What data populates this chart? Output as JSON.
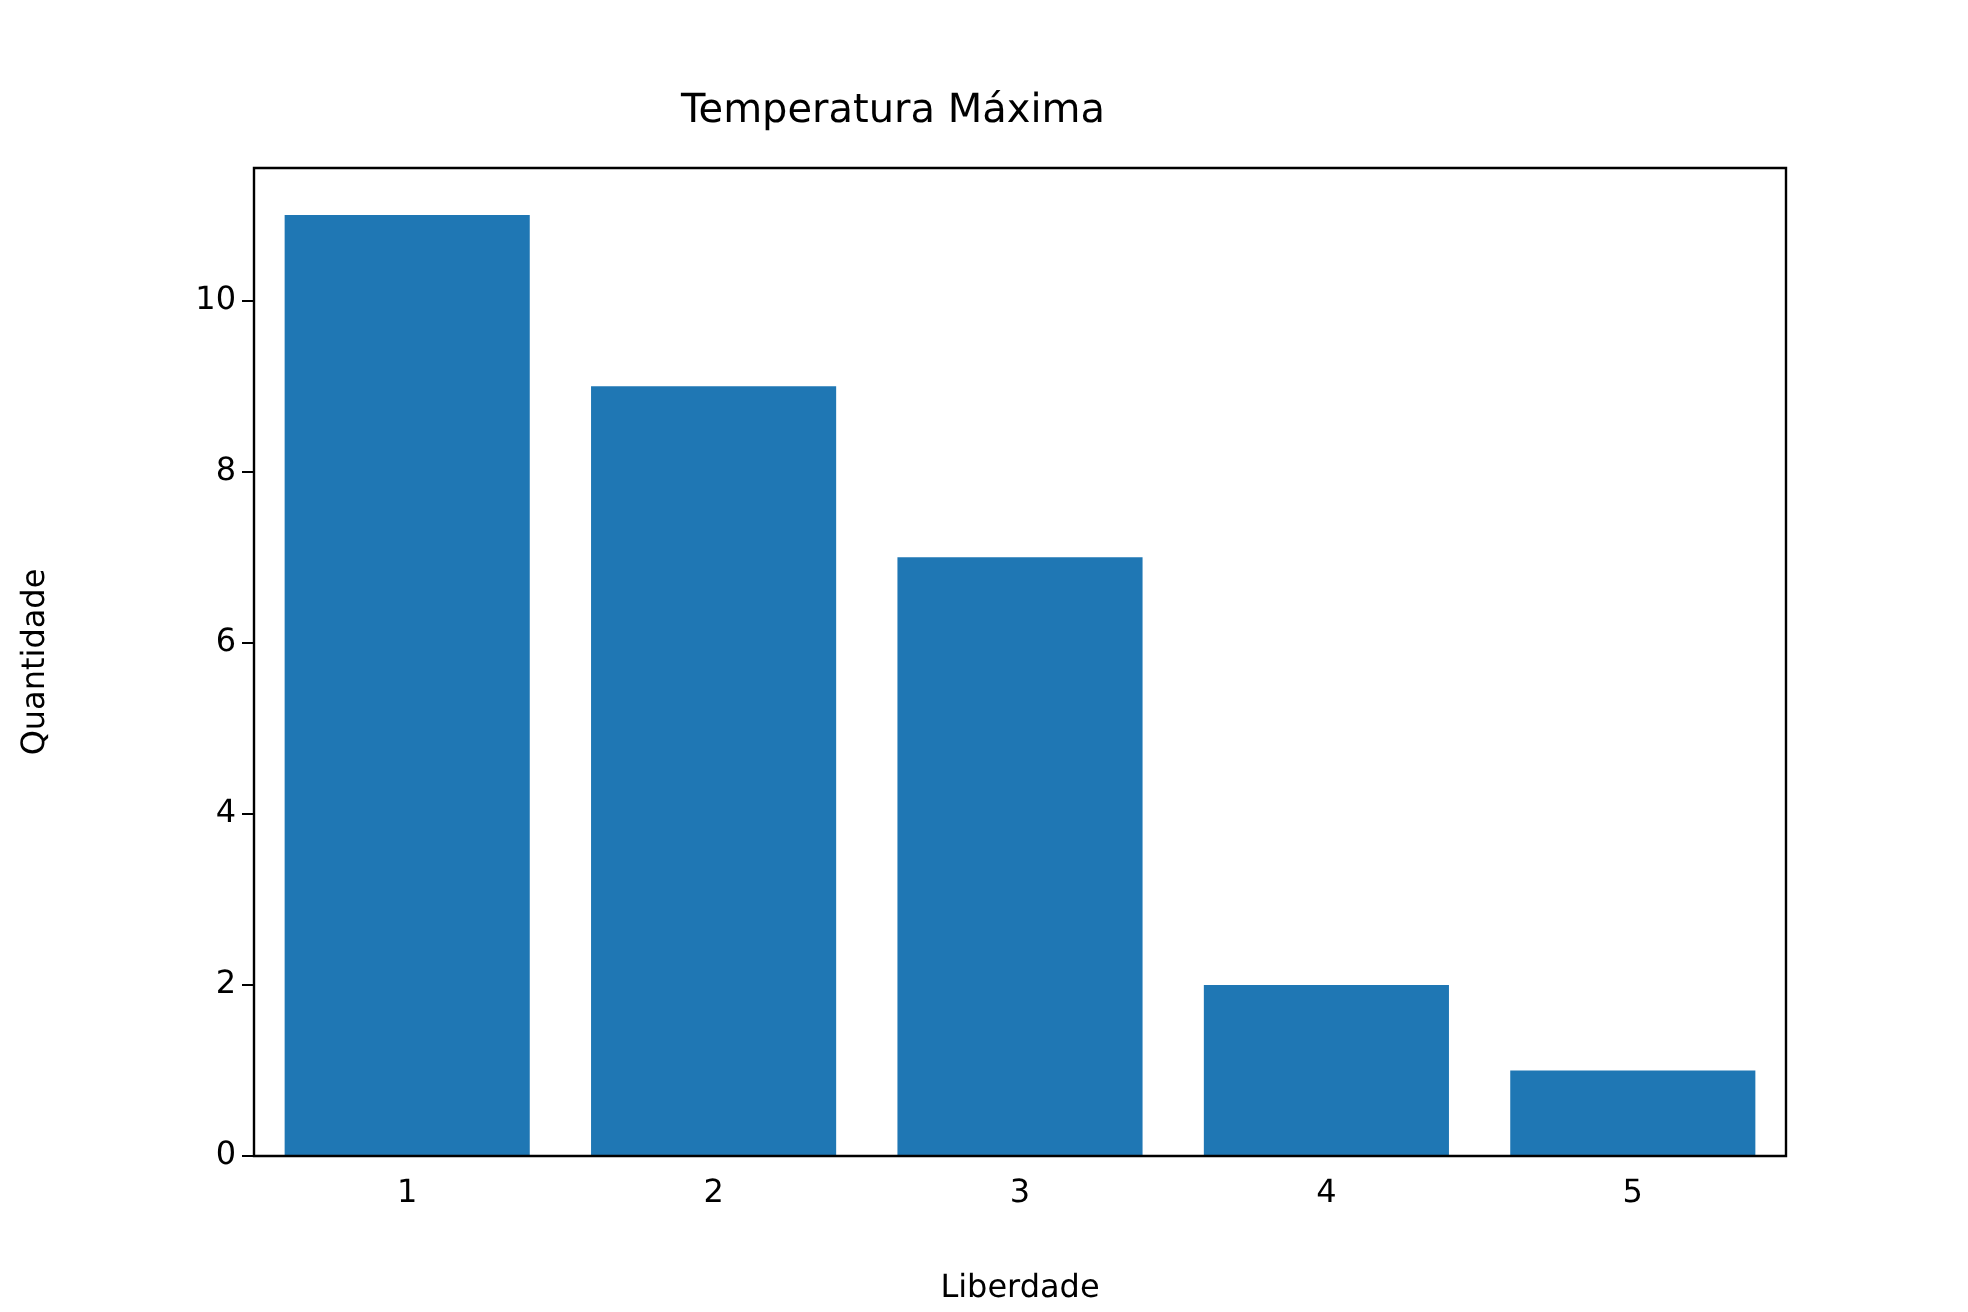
{
  "chart_data": {
    "type": "bar",
    "title": "Temperatura Máxima",
    "xlabel": "Liberdade",
    "ylabel": "Quantidade",
    "categories": [
      "1",
      "2",
      "3",
      "4",
      "5"
    ],
    "values": [
      11,
      9,
      7,
      2,
      1
    ],
    "color": "#1f77b4",
    "ylim": [
      0,
      11.55
    ],
    "yticks": [
      0,
      2,
      4,
      6,
      8,
      10
    ],
    "grid": false,
    "legend": false
  }
}
